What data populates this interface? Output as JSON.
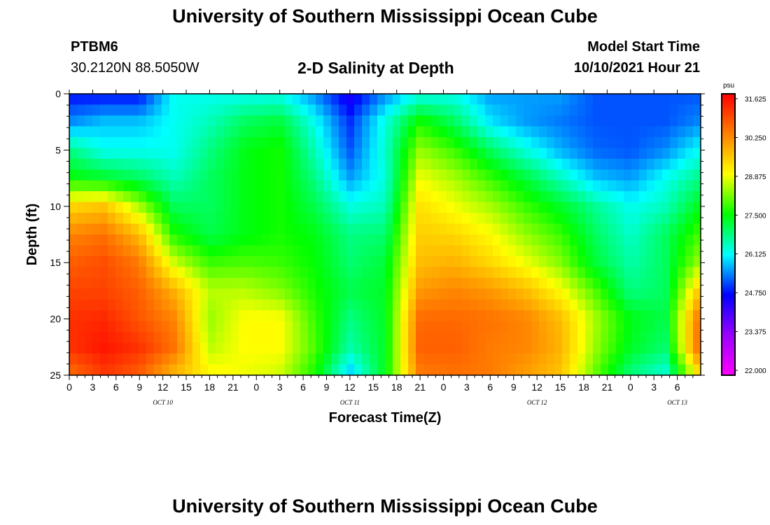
{
  "header": {
    "title": "University of Southern Mississippi Ocean Cube",
    "station_id": "PTBM6",
    "station_coords": "30.2120N  88.5050W",
    "subtitle": "2-D Salinity at Depth",
    "model_start_label": "Model Start Time",
    "model_start_value": "10/10/2021 Hour 21"
  },
  "footer": {
    "title": "University of Southern Mississippi Ocean Cube"
  },
  "chart_data": {
    "type": "heatmap",
    "title": "2-D Salinity at Depth",
    "xlabel": "Forecast Time(Z)",
    "ylabel": "Depth (ft)",
    "colorbar_unit": "psu",
    "colorbar_ticks": [
      "31.625",
      "30.250",
      "28.875",
      "27.500",
      "26.125",
      "24.750",
      "23.375",
      "22.000"
    ],
    "colorbar_range": [
      22.0,
      31.625
    ],
    "colorbar_colors": [
      "#ff00ff",
      "#9a00ff",
      "#0000ff",
      "#00ffff",
      "#00ff00",
      "#ffff00",
      "#ff8000",
      "#ff0000"
    ],
    "x_hours_range": [
      0,
      81
    ],
    "x_tick_labels": [
      "0",
      "3",
      "6",
      "9",
      "12",
      "15",
      "18",
      "21",
      "0",
      "3",
      "6",
      "9",
      "12",
      "15",
      "18",
      "21",
      "0",
      "3",
      "6",
      "9",
      "12",
      "15",
      "18",
      "21",
      "0",
      "3",
      "6"
    ],
    "day_labels": [
      {
        "label": "OCT 10",
        "hour": 12
      },
      {
        "label": "OCT 11",
        "hour": 36
      },
      {
        "label": "OCT 12",
        "hour": 60
      },
      {
        "label": "OCT 13",
        "hour": 78
      }
    ],
    "y_range": [
      0,
      25
    ],
    "y_ticks": [
      0,
      5,
      10,
      15,
      20,
      25
    ],
    "y_ticks_display": [
      "0",
      "5",
      "10",
      "15",
      "20",
      "25"
    ],
    "x_grid_hours": [
      0,
      4.5,
      9,
      13.5,
      18,
      22.5,
      27,
      31.5,
      36,
      40.5,
      45,
      49.5,
      54,
      58.5,
      63,
      67.5,
      72,
      76.5,
      81
    ],
    "y_grid_depths": [
      0,
      2.5,
      5,
      7.5,
      10,
      12.5,
      15,
      17.5,
      20,
      22.5,
      25
    ],
    "salinity_grid": [
      [
        24.8,
        24.8,
        24.8,
        26.2,
        26.2,
        26.2,
        26.2,
        25.5,
        24.5,
        25.5,
        26.2,
        26.2,
        25.6,
        25.6,
        25.6,
        25.2,
        25.2,
        25.2,
        25.2
      ],
      [
        25.5,
        25.8,
        25.8,
        26.2,
        26.5,
        27.0,
        27.2,
        26.2,
        25.0,
        26.3,
        27.6,
        27.0,
        26.0,
        25.6,
        25.4,
        25.2,
        25.2,
        25.2,
        25.5
      ],
      [
        26.8,
        26.2,
        26.2,
        26.2,
        26.8,
        27.4,
        27.6,
        26.5,
        25.2,
        26.4,
        28.3,
        27.8,
        27.0,
        26.3,
        25.7,
        25.3,
        25.2,
        25.5,
        26.2
      ],
      [
        27.5,
        27.3,
        27.0,
        26.5,
        27.0,
        27.4,
        27.6,
        26.8,
        25.6,
        26.3,
        28.8,
        28.4,
        27.8,
        27.2,
        26.5,
        25.8,
        25.6,
        26.2,
        26.8
      ],
      [
        29.3,
        29.5,
        28.4,
        27.0,
        27.0,
        27.4,
        27.6,
        27.1,
        26.3,
        26.5,
        29.2,
        28.8,
        28.4,
        27.8,
        27.3,
        26.7,
        26.2,
        26.5,
        27.4
      ],
      [
        30.2,
        30.4,
        29.6,
        27.6,
        27.1,
        27.4,
        27.6,
        27.4,
        26.8,
        26.9,
        29.4,
        29.3,
        28.9,
        28.3,
        27.8,
        27.0,
        26.4,
        27.0,
        27.9
      ],
      [
        30.6,
        30.8,
        30.3,
        28.6,
        27.8,
        27.9,
        27.8,
        27.5,
        26.9,
        27.2,
        29.6,
        29.7,
        29.3,
        28.8,
        28.2,
        27.2,
        26.6,
        27.0,
        28.4
      ],
      [
        30.9,
        30.9,
        30.6,
        29.7,
        28.5,
        28.5,
        28.2,
        27.6,
        27.1,
        27.3,
        30.0,
        30.2,
        30.0,
        29.6,
        28.9,
        27.9,
        26.8,
        27.0,
        29.6
      ],
      [
        31.1,
        31.2,
        30.7,
        30.2,
        28.3,
        28.9,
        28.9,
        27.8,
        26.8,
        27.3,
        30.5,
        30.5,
        30.4,
        30.2,
        29.6,
        28.4,
        27.4,
        27.1,
        30.6
      ],
      [
        31.1,
        31.4,
        31.1,
        30.4,
        28.5,
        28.9,
        28.9,
        27.9,
        26.6,
        27.3,
        30.6,
        30.6,
        30.3,
        30.2,
        29.7,
        28.3,
        27.3,
        26.9,
        30.7
      ],
      [
        30.4,
        31.0,
        30.6,
        29.6,
        29.0,
        28.8,
        28.6,
        27.6,
        25.8,
        27.4,
        30.3,
        30.4,
        30.3,
        29.9,
        29.5,
        28.0,
        26.8,
        26.3,
        29.3
      ]
    ]
  }
}
